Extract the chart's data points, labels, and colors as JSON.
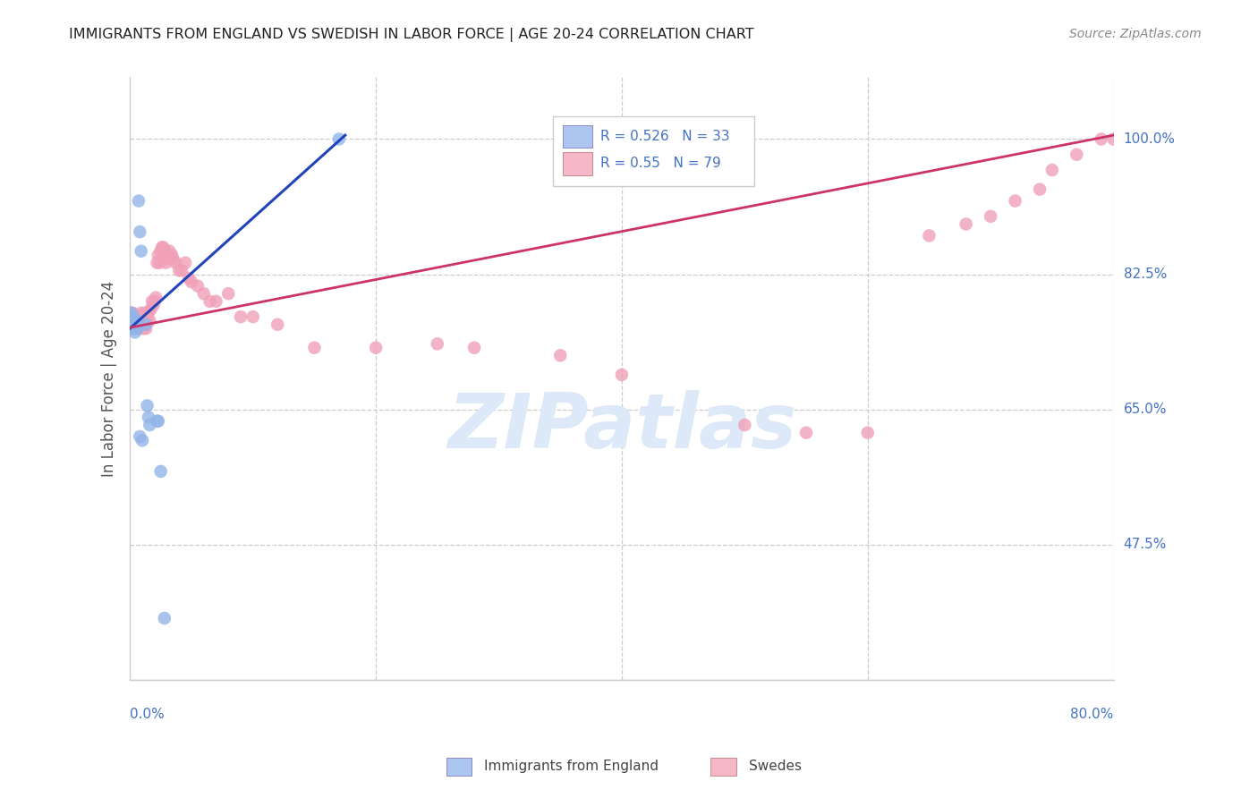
{
  "title": "IMMIGRANTS FROM ENGLAND VS SWEDISH IN LABOR FORCE | AGE 20-24 CORRELATION CHART",
  "source": "Source: ZipAtlas.com",
  "ylabel": "In Labor Force | Age 20-24",
  "yticks": [
    0.475,
    0.65,
    0.825,
    1.0
  ],
  "ytick_labels": [
    "47.5%",
    "65.0%",
    "82.5%",
    "100.0%"
  ],
  "xtick_left": "0.0%",
  "xtick_right": "80.0%",
  "xmin": 0.0,
  "xmax": 0.8,
  "ymin": 0.3,
  "ymax": 1.08,
  "england_R": 0.526,
  "england_N": 33,
  "sweden_R": 0.55,
  "sweden_N": 79,
  "england_color": "#92b4e8",
  "england_line_color": "#2244bb",
  "sweden_color": "#f0a0b8",
  "sweden_line_color": "#cc3366",
  "watermark_color": "#dde8f8",
  "legend_eng_fill": "#adc6f0",
  "legend_swe_fill": "#f4b8c8",
  "eng_x": [
    0.001,
    0.001,
    0.001,
    0.001,
    0.002,
    0.002,
    0.002,
    0.003,
    0.003,
    0.003,
    0.004,
    0.004,
    0.005,
    0.005,
    0.005,
    0.005,
    0.005,
    0.006,
    0.006,
    0.007,
    0.008,
    0.008,
    0.009,
    0.01,
    0.013,
    0.014,
    0.015,
    0.016,
    0.022,
    0.023,
    0.025,
    0.028,
    0.17
  ],
  "eng_y": [
    0.755,
    0.76,
    0.77,
    0.775,
    0.755,
    0.76,
    0.765,
    0.76,
    0.765,
    0.77,
    0.75,
    0.765,
    0.76,
    0.765,
    0.755,
    0.76,
    0.765,
    0.755,
    0.76,
    0.92,
    0.88,
    0.615,
    0.855,
    0.61,
    0.76,
    0.655,
    0.64,
    0.63,
    0.635,
    0.635,
    0.57,
    0.38,
    1.0
  ],
  "swe_x": [
    0.001,
    0.001,
    0.002,
    0.002,
    0.003,
    0.003,
    0.004,
    0.004,
    0.005,
    0.005,
    0.005,
    0.006,
    0.006,
    0.007,
    0.007,
    0.008,
    0.008,
    0.009,
    0.009,
    0.01,
    0.01,
    0.011,
    0.011,
    0.012,
    0.012,
    0.013,
    0.013,
    0.014,
    0.015,
    0.016,
    0.017,
    0.018,
    0.019,
    0.02,
    0.021,
    0.022,
    0.023,
    0.024,
    0.025,
    0.026,
    0.027,
    0.028,
    0.029,
    0.03,
    0.032,
    0.034,
    0.035,
    0.037,
    0.04,
    0.042,
    0.045,
    0.048,
    0.05,
    0.055,
    0.06,
    0.065,
    0.07,
    0.08,
    0.09,
    0.1,
    0.12,
    0.15,
    0.2,
    0.25,
    0.28,
    0.35,
    0.4,
    0.5,
    0.55,
    0.6,
    0.65,
    0.68,
    0.7,
    0.72,
    0.74,
    0.75,
    0.77,
    0.79,
    0.8
  ],
  "swe_y": [
    0.77,
    0.775,
    0.765,
    0.775,
    0.755,
    0.76,
    0.76,
    0.77,
    0.755,
    0.76,
    0.77,
    0.755,
    0.765,
    0.76,
    0.77,
    0.755,
    0.76,
    0.77,
    0.775,
    0.755,
    0.77,
    0.755,
    0.77,
    0.76,
    0.775,
    0.755,
    0.765,
    0.77,
    0.775,
    0.765,
    0.78,
    0.79,
    0.785,
    0.79,
    0.795,
    0.84,
    0.85,
    0.84,
    0.855,
    0.86,
    0.86,
    0.855,
    0.84,
    0.845,
    0.855,
    0.85,
    0.845,
    0.84,
    0.83,
    0.83,
    0.84,
    0.82,
    0.815,
    0.81,
    0.8,
    0.79,
    0.79,
    0.8,
    0.77,
    0.77,
    0.76,
    0.73,
    0.73,
    0.735,
    0.73,
    0.72,
    0.695,
    0.63,
    0.62,
    0.62,
    0.875,
    0.89,
    0.9,
    0.92,
    0.935,
    0.96,
    0.98,
    1.0,
    1.0
  ],
  "eng_trend_x0": 0.0,
  "eng_trend_y0": 0.755,
  "eng_trend_x1": 0.175,
  "eng_trend_y1": 1.005,
  "swe_trend_x0": 0.0,
  "swe_trend_y0": 0.756,
  "swe_trend_x1": 0.8,
  "swe_trend_y1": 1.005
}
